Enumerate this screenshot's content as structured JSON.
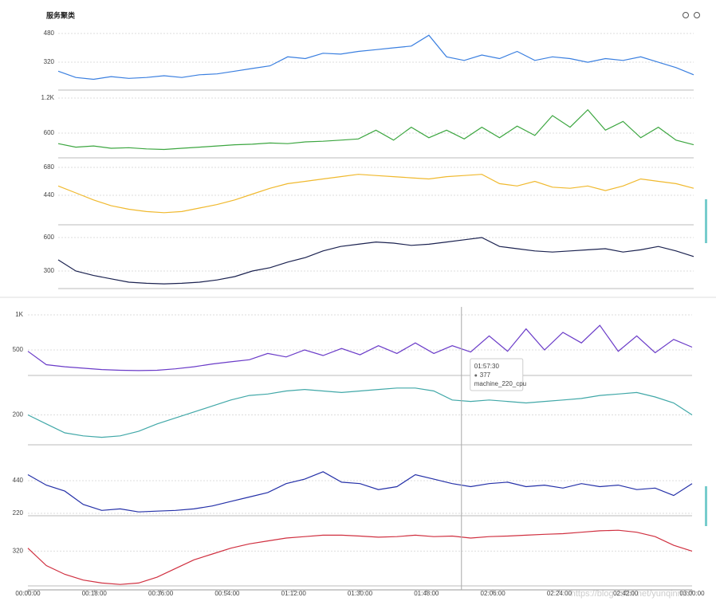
{
  "title": "服务聚类",
  "tooltip": {
    "time": "01:57:30",
    "value": 377,
    "name": "machine_220_cpu"
  },
  "watermark": "https://blog.csdn.net/yunqinmm",
  "chart_data": [
    {
      "type": "line",
      "color": "#3a7fe0",
      "x": [
        "00:00:00",
        "00:05:00",
        "00:10:00",
        "00:15:00",
        "00:20:00",
        "00:25:00",
        "00:30:00",
        "00:35:00",
        "00:40:00",
        "00:45:00",
        "00:50:00",
        "00:55:00",
        "01:00:00",
        "01:05:00",
        "01:10:00",
        "01:15:00",
        "01:20:00",
        "01:25:00",
        "01:30:00",
        "01:35:00",
        "01:40:00",
        "01:45:00",
        "01:50:00",
        "01:55:00",
        "02:00:00",
        "02:05:00",
        "02:10:00",
        "02:15:00",
        "02:20:00",
        "02:25:00",
        "02:30:00",
        "02:35:00",
        "02:40:00",
        "02:45:00",
        "02:50:00",
        "02:55:00",
        "03:00:00"
      ],
      "values": [
        270,
        235,
        225,
        240,
        230,
        235,
        245,
        235,
        250,
        255,
        270,
        285,
        300,
        350,
        340,
        370,
        365,
        380,
        390,
        400,
        410,
        470,
        350,
        330,
        360,
        340,
        380,
        330,
        350,
        340,
        320,
        340,
        330,
        350,
        320,
        290,
        250
      ],
      "ylim": [
        165,
        511
      ],
      "yticks": [
        320,
        480
      ]
    },
    {
      "type": "line",
      "color": "#3ca640",
      "x": [
        "00:00:00",
        "00:05:00",
        "00:10:00",
        "00:15:00",
        "00:20:00",
        "00:25:00",
        "00:30:00",
        "00:35:00",
        "00:40:00",
        "00:45:00",
        "00:50:00",
        "00:55:00",
        "01:00:00",
        "01:05:00",
        "01:10:00",
        "01:15:00",
        "01:20:00",
        "01:25:00",
        "01:30:00",
        "01:35:00",
        "01:40:00",
        "01:45:00",
        "01:50:00",
        "01:55:00",
        "02:00:00",
        "02:05:00",
        "02:10:00",
        "02:15:00",
        "02:20:00",
        "02:25:00",
        "02:30:00",
        "02:35:00",
        "02:40:00",
        "02:45:00",
        "02:50:00",
        "02:55:00",
        "03:00:00"
      ],
      "values": [
        420,
        360,
        380,
        340,
        350,
        330,
        320,
        340,
        360,
        380,
        400,
        410,
        430,
        420,
        450,
        460,
        480,
        500,
        650,
        480,
        700,
        520,
        650,
        500,
        700,
        520,
        720,
        560,
        900,
        700,
        1000,
        650,
        800,
        520,
        700,
        480,
        400
      ],
      "ylim": [
        177,
        1268
      ],
      "yticks": [
        600,
        {
          "value": 1200,
          "label": "1.2K"
        }
      ]
    },
    {
      "type": "line",
      "color": "#f0b92e",
      "x": [
        "00:00:00",
        "00:05:00",
        "00:10:00",
        "00:15:00",
        "00:20:00",
        "00:25:00",
        "00:30:00",
        "00:35:00",
        "00:40:00",
        "00:45:00",
        "00:50:00",
        "00:55:00",
        "01:00:00",
        "01:05:00",
        "01:10:00",
        "01:15:00",
        "01:20:00",
        "01:25:00",
        "01:30:00",
        "01:35:00",
        "01:40:00",
        "01:45:00",
        "01:50:00",
        "01:55:00",
        "02:00:00",
        "02:05:00",
        "02:10:00",
        "02:15:00",
        "02:20:00",
        "02:25:00",
        "02:30:00",
        "02:35:00",
        "02:40:00",
        "02:45:00",
        "02:50:00",
        "02:55:00",
        "03:00:00"
      ],
      "values": [
        520,
        460,
        400,
        350,
        320,
        300,
        290,
        300,
        330,
        360,
        400,
        450,
        500,
        540,
        560,
        580,
        600,
        620,
        610,
        600,
        590,
        580,
        600,
        610,
        620,
        540,
        520,
        560,
        510,
        500,
        520,
        480,
        520,
        580,
        560,
        540,
        500
      ],
      "ylim": [
        186,
        714
      ],
      "yticks": [
        440,
        680
      ]
    },
    {
      "type": "line",
      "color": "#1b2250",
      "x": [
        "00:00:00",
        "00:05:00",
        "00:10:00",
        "00:15:00",
        "00:20:00",
        "00:25:00",
        "00:30:00",
        "00:35:00",
        "00:40:00",
        "00:45:00",
        "00:50:00",
        "00:55:00",
        "01:00:00",
        "01:05:00",
        "01:10:00",
        "01:15:00",
        "01:20:00",
        "01:25:00",
        "01:30:00",
        "01:35:00",
        "01:40:00",
        "01:45:00",
        "01:50:00",
        "01:55:00",
        "02:00:00",
        "02:05:00",
        "02:10:00",
        "02:15:00",
        "02:20:00",
        "02:25:00",
        "02:30:00",
        "02:35:00",
        "02:40:00",
        "02:45:00",
        "02:50:00",
        "02:55:00",
        "03:00:00"
      ],
      "values": [
        400,
        300,
        260,
        230,
        200,
        190,
        185,
        190,
        200,
        220,
        250,
        300,
        330,
        380,
        420,
        480,
        520,
        540,
        560,
        550,
        530,
        540,
        560,
        580,
        600,
        520,
        500,
        480,
        470,
        480,
        490,
        500,
        470,
        490,
        520,
        480,
        430
      ],
      "ylim": [
        143,
        657
      ],
      "yticks": [
        300,
        600
      ]
    },
    {
      "type": "line",
      "color": "#6a3bc8",
      "x": [
        "00:00:00",
        "00:05:00",
        "00:10:00",
        "00:15:00",
        "00:20:00",
        "00:25:00",
        "00:30:00",
        "00:35:00",
        "00:40:00",
        "00:45:00",
        "00:50:00",
        "00:55:00",
        "01:00:00",
        "01:05:00",
        "01:10:00",
        "01:15:00",
        "01:20:00",
        "01:25:00",
        "01:30:00",
        "01:35:00",
        "01:40:00",
        "01:45:00",
        "01:50:00",
        "01:55:00",
        "02:00:00",
        "02:05:00",
        "02:10:00",
        "02:15:00",
        "02:20:00",
        "02:25:00",
        "02:30:00",
        "02:35:00",
        "02:40:00",
        "02:45:00",
        "02:50:00",
        "02:55:00",
        "03:00:00"
      ],
      "values": [
        480,
        290,
        260,
        240,
        220,
        210,
        205,
        210,
        230,
        260,
        300,
        330,
        360,
        450,
        400,
        500,
        420,
        520,
        430,
        560,
        450,
        600,
        450,
        560,
        470,
        700,
        480,
        800,
        500,
        750,
        600,
        850,
        480,
        700,
        460,
        650,
        540
      ],
      "ylim": [
        136,
        1091
      ],
      "yticks": [
        500,
        {
          "value": 1000,
          "label": "1K"
        }
      ]
    },
    {
      "type": "line",
      "color": "#41a8a8",
      "x": [
        "00:00:00",
        "00:05:00",
        "00:10:00",
        "00:15:00",
        "00:20:00",
        "00:25:00",
        "00:30:00",
        "00:35:00",
        "00:40:00",
        "00:45:00",
        "00:50:00",
        "00:55:00",
        "01:00:00",
        "01:05:00",
        "01:10:00",
        "01:15:00",
        "01:20:00",
        "01:25:00",
        "01:30:00",
        "01:35:00",
        "01:40:00",
        "01:45:00",
        "01:50:00",
        "01:55:00",
        "02:00:00",
        "02:05:00",
        "02:10:00",
        "02:15:00",
        "02:20:00",
        "02:25:00",
        "02:30:00",
        "02:35:00",
        "02:40:00",
        "02:45:00",
        "02:50:00",
        "02:55:00",
        "03:00:00"
      ],
      "values": [
        200,
        170,
        140,
        130,
        125,
        130,
        145,
        170,
        190,
        210,
        230,
        250,
        265,
        270,
        280,
        285,
        280,
        275,
        280,
        285,
        290,
        290,
        280,
        250,
        245,
        250,
        245,
        240,
        245,
        250,
        255,
        265,
        270,
        275,
        260,
        240,
        200
      ],
      "ylim": [
        100,
        308
      ],
      "yticks": [
        200
      ]
    },
    {
      "type": "line",
      "color": "#2430a8",
      "x": [
        "00:00:00",
        "00:05:00",
        "00:10:00",
        "00:15:00",
        "00:20:00",
        "00:25:00",
        "00:30:00",
        "00:35:00",
        "00:40:00",
        "00:45:00",
        "00:50:00",
        "00:55:00",
        "01:00:00",
        "01:05:00",
        "01:10:00",
        "01:15:00",
        "01:20:00",
        "01:25:00",
        "01:30:00",
        "01:35:00",
        "01:40:00",
        "01:45:00",
        "01:50:00",
        "01:55:00",
        "02:00:00",
        "02:05:00",
        "02:10:00",
        "02:15:00",
        "02:20:00",
        "02:25:00",
        "02:30:00",
        "02:35:00",
        "02:40:00",
        "02:45:00",
        "02:50:00",
        "02:55:00",
        "03:00:00"
      ],
      "values": [
        480,
        410,
        370,
        280,
        240,
        250,
        230,
        235,
        240,
        250,
        270,
        300,
        330,
        360,
        420,
        450,
        500,
        430,
        420,
        380,
        400,
        480,
        450,
        420,
        400,
        420,
        430,
        400,
        410,
        390,
        420,
        400,
        410,
        380,
        390,
        340,
        420
      ],
      "ylim": [
        204,
        617
      ],
      "yticks": [
        220,
        440
      ]
    },
    {
      "type": "line",
      "color": "#d03040",
      "x": [
        "00:00:00",
        "00:05:00",
        "00:10:00",
        "00:15:00",
        "00:20:00",
        "00:25:00",
        "00:30:00",
        "00:35:00",
        "00:40:00",
        "00:45:00",
        "00:50:00",
        "00:55:00",
        "01:00:00",
        "01:05:00",
        "01:10:00",
        "01:15:00",
        "01:20:00",
        "01:25:00",
        "01:30:00",
        "01:35:00",
        "01:40:00",
        "01:45:00",
        "01:50:00",
        "01:55:00",
        "02:00:00",
        "02:05:00",
        "02:10:00",
        "02:15:00",
        "02:20:00",
        "02:25:00",
        "02:30:00",
        "02:35:00",
        "02:40:00",
        "02:45:00",
        "02:50:00",
        "02:55:00",
        "03:00:00"
      ],
      "values": [
        330,
        270,
        240,
        220,
        210,
        205,
        210,
        230,
        260,
        290,
        310,
        330,
        345,
        355,
        365,
        370,
        375,
        375,
        372,
        368,
        370,
        375,
        370,
        372,
        365,
        370,
        372,
        375,
        378,
        380,
        385,
        390,
        392,
        385,
        370,
        340,
        320
      ],
      "ylim": [
        200,
        420
      ],
      "yticks": [
        320
      ],
      "xticks": [
        "00:00:00",
        "00:18:00",
        "00:36:00",
        "00:54:00",
        "01:12:00",
        "01:30:00",
        "01:48:00",
        "02:06:00",
        "02:24:00",
        "02:42:00",
        "03:00:00"
      ]
    }
  ]
}
